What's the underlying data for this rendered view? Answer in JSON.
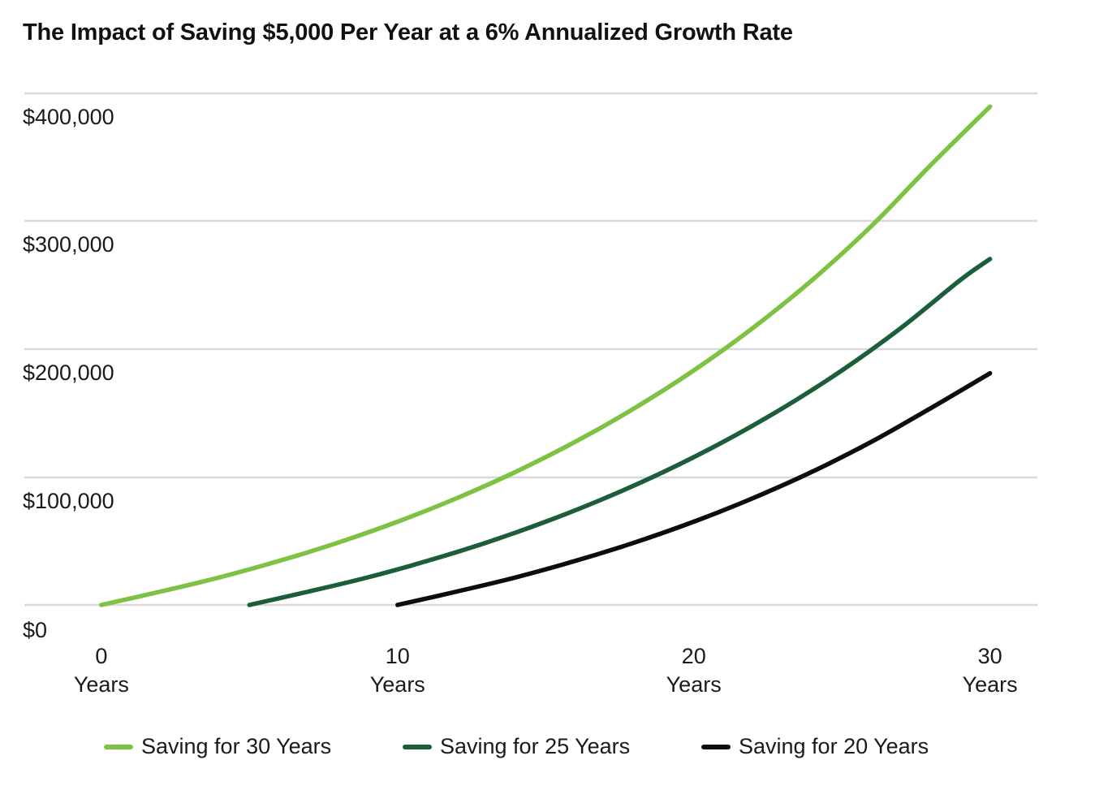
{
  "title": "The Impact of Saving $5,000 Per Year at a 6% Annualized Growth Rate",
  "chart_data": {
    "type": "line",
    "title": "The Impact of Saving $5,000 Per Year at a 6% Annualized Growth Rate",
    "xlabel": "",
    "ylabel": "",
    "xlim": [
      -2.6,
      31.6
    ],
    "ylim": [
      0,
      400000
    ],
    "x_ticks": [
      {
        "value": 0,
        "line1": "0",
        "line2": "Years"
      },
      {
        "value": 10,
        "line1": "10",
        "line2": "Years"
      },
      {
        "value": 20,
        "line1": "20",
        "line2": "Years"
      },
      {
        "value": 30,
        "line1": "30",
        "line2": "Years"
      }
    ],
    "y_ticks": [
      {
        "value": 0,
        "label": "$0"
      },
      {
        "value": 100000,
        "label": "$100,000"
      },
      {
        "value": 200000,
        "label": "$200,000"
      },
      {
        "value": 300000,
        "label": "$300,000"
      },
      {
        "value": 400000,
        "label": "$400,000"
      }
    ],
    "grid": true,
    "legend_position": "bottom",
    "series": [
      {
        "name": "Saving for 30 Years",
        "color": "#7dc242",
        "x": [
          0,
          2,
          4,
          6,
          8,
          10,
          12,
          14,
          16,
          18,
          20,
          22,
          24,
          26,
          28,
          30
        ],
        "y": [
          0,
          10600,
          21900,
          34900,
          49500,
          66000,
          84700,
          105700,
          129400,
          156100,
          186000,
          219800,
          257800,
          300600,
          348900,
          395300
        ]
      },
      {
        "name": "Saving for 25 Years",
        "color": "#1d5e3a",
        "x": [
          5,
          7,
          9,
          11,
          13,
          15,
          17,
          19,
          21,
          23,
          25,
          27,
          29,
          30
        ],
        "y": [
          0,
          10600,
          21900,
          34900,
          49500,
          66000,
          84700,
          105700,
          129400,
          156100,
          186000,
          219800,
          257800,
          274400
        ]
      },
      {
        "name": "Saving for 20 Years",
        "color": "#0d0d0d",
        "x": [
          10,
          12,
          14,
          16,
          18,
          20,
          22,
          24,
          26,
          28,
          30
        ],
        "y": [
          0,
          10600,
          21900,
          34900,
          49500,
          66000,
          84700,
          105700,
          129400,
          156100,
          183800
        ]
      }
    ]
  }
}
